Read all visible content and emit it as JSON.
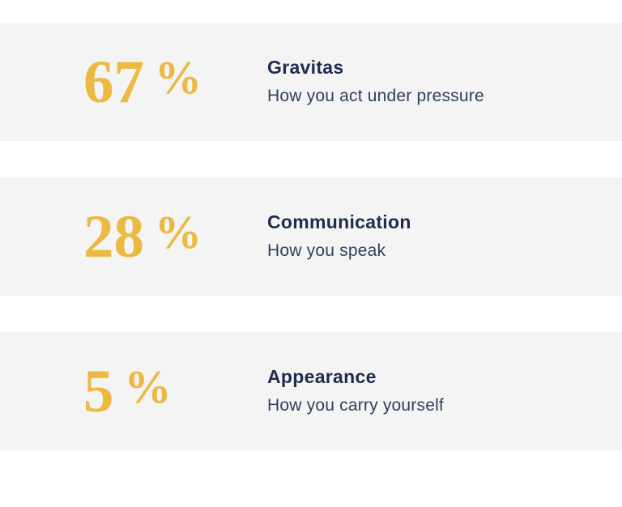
{
  "chart_data": {
    "type": "table",
    "title": "",
    "categories": [
      "Gravitas",
      "Communication",
      "Appearance"
    ],
    "values": [
      67,
      28,
      5
    ],
    "unit": "%",
    "descriptions": [
      "How you act under pressure",
      "How you speak",
      "How you carry yourself"
    ],
    "layout": "stacked horizontal stat bands, value left, label right",
    "grid": false,
    "legend": false
  },
  "colors": {
    "accent_gold": "#ecb942",
    "title_navy": "#1f2c4d",
    "description_navy": "#31405c",
    "row_background": "#f4f4f5",
    "page_background": "#ffffff"
  },
  "rows": [
    {
      "value": "67",
      "percent_sign": "%",
      "title": "Gravitas",
      "description": "How you act under pressure"
    },
    {
      "value": "28",
      "percent_sign": "%",
      "title": "Communication",
      "description": "How you speak"
    },
    {
      "value": "5",
      "percent_sign": "%",
      "title": "Appearance",
      "description": "How you carry yourself"
    }
  ]
}
